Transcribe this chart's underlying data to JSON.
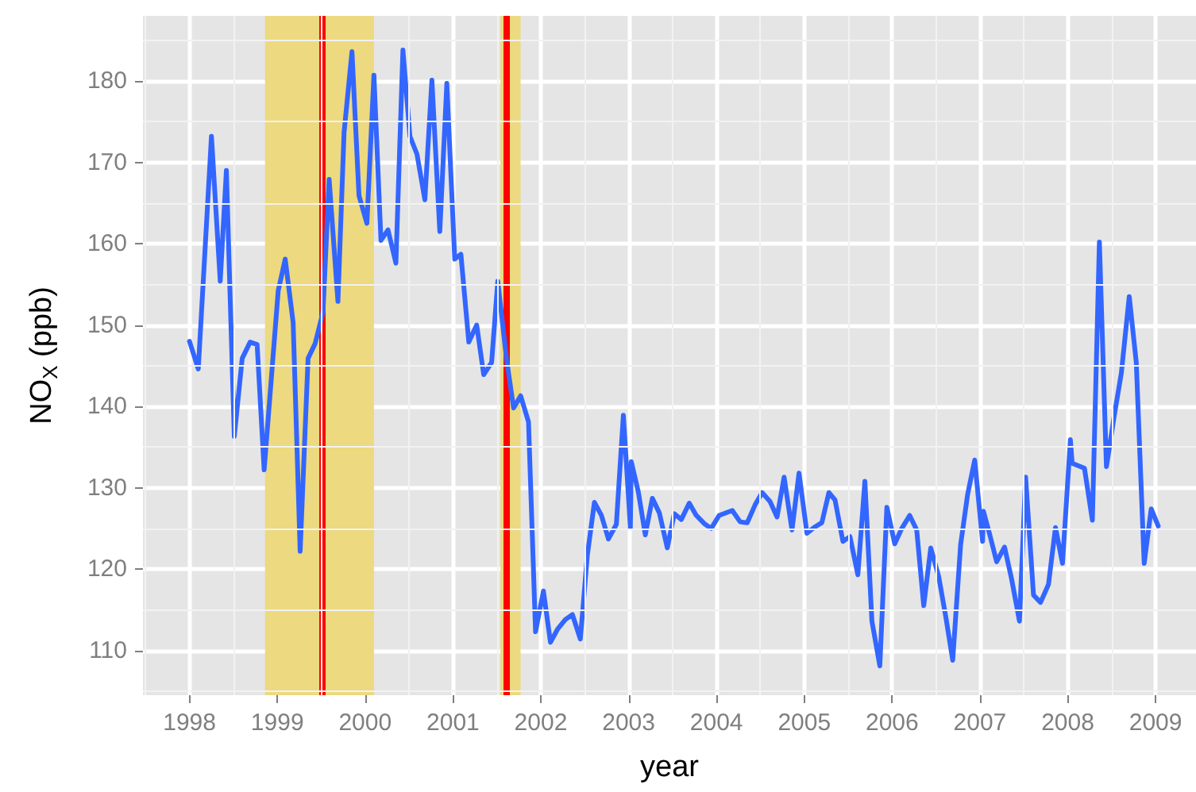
{
  "chart_data": {
    "type": "line",
    "xlabel": "year",
    "ylabel": "NO$_{X}$ (ppb)",
    "x": [
      1998.0,
      1998.1,
      1998.25,
      1998.35,
      1998.42,
      1998.51,
      1998.6,
      1998.69,
      1998.77,
      1998.85,
      1999.01,
      1999.09,
      1999.18,
      1999.26,
      1999.35,
      1999.43,
      1999.52,
      1999.59,
      1999.69,
      1999.76,
      1999.85,
      1999.93,
      2000.02,
      2000.1,
      2000.18,
      2000.26,
      2000.35,
      2000.43,
      2000.51,
      2000.59,
      2000.68,
      2000.76,
      2000.85,
      2000.93,
      2001.02,
      2001.09,
      2001.18,
      2001.27,
      2001.35,
      2001.44,
      2001.51,
      2001.61,
      2001.69,
      2001.77,
      2001.86,
      2001.94,
      2002.03,
      2002.11,
      2002.19,
      2002.28,
      2002.36,
      2002.45,
      2002.53,
      2002.61,
      2002.69,
      2002.77,
      2002.86,
      2002.94,
      2003.02,
      2003.03,
      2003.11,
      2003.19,
      2003.27,
      2003.35,
      2003.44,
      2003.52,
      2003.6,
      2003.69,
      2003.77,
      2003.86,
      2003.94,
      2004.03,
      2004.18,
      2004.27,
      2004.35,
      2004.44,
      2004.52,
      2004.61,
      2004.69,
      2004.77,
      2004.86,
      2004.94,
      2005.03,
      2005.11,
      2005.2,
      2005.28,
      2005.35,
      2005.44,
      2005.52,
      2005.61,
      2005.69,
      2005.77,
      2005.86,
      2005.94,
      2006.03,
      2006.11,
      2006.2,
      2006.28,
      2006.36,
      2006.44,
      2006.53,
      2006.61,
      2006.69,
      2006.78,
      2006.86,
      2006.94,
      2007.03,
      2007.04,
      2007.11,
      2007.19,
      2007.28,
      2007.36,
      2007.45,
      2007.52,
      2007.61,
      2007.69,
      2007.78,
      2007.86,
      2007.94,
      2008.03,
      2008.05,
      2008.19,
      2008.28,
      2008.36,
      2008.44,
      2008.53,
      2008.61,
      2008.7,
      2008.78,
      2008.87,
      2008.95,
      2009.03
    ],
    "series": [
      {
        "color": "#3366ff",
        "values": [
          148.0,
          144.6,
          173.2,
          155.4,
          169.0,
          136.3,
          145.9,
          147.9,
          147.6,
          132.2,
          154.2,
          158.1,
          150.3,
          122.2,
          145.9,
          147.7,
          151.6,
          167.9,
          152.9,
          173.7,
          183.6,
          165.9,
          162.5,
          180.7,
          160.4,
          161.7,
          157.6,
          183.8,
          173.2,
          171.0,
          165.4,
          180.1,
          161.5,
          179.7,
          158.1,
          158.7,
          147.9,
          150.0,
          143.9,
          145.4,
          155.4,
          145.8,
          139.8,
          141.3,
          138.1,
          112.3,
          117.3,
          111.0,
          112.6,
          113.8,
          114.4,
          111.4,
          121.7,
          128.2,
          126.6,
          123.7,
          125.5,
          138.9,
          125.1,
          133.2,
          129.5,
          124.2,
          128.7,
          126.9,
          122.6,
          126.8,
          126.1,
          128.1,
          126.6,
          125.6,
          125.0,
          126.6,
          127.2,
          125.8,
          125.7,
          127.9,
          129.4,
          128.3,
          126.4,
          131.3,
          124.8,
          131.8,
          124.4,
          125.1,
          125.7,
          129.4,
          128.5,
          123.4,
          124.0,
          119.3,
          130.8,
          113.6,
          108.1,
          127.6,
          123.1,
          125.0,
          126.6,
          124.8,
          115.5,
          122.6,
          119.1,
          114.2,
          108.8,
          123.0,
          129.2,
          133.4,
          123.4,
          127.1,
          124.3,
          120.9,
          122.7,
          118.8,
          113.6,
          131.3,
          116.8,
          115.9,
          118.1,
          125.1,
          120.7,
          135.9,
          133.0,
          132.4,
          126.0,
          160.2,
          132.6,
          138.9,
          144.1,
          153.5,
          145.4,
          120.7,
          127.4,
          125.3
        ]
      }
    ],
    "xlim": [
      1997.47,
      2009.46
    ],
    "xticks": [
      1998,
      1999,
      2000,
      2001,
      2002,
      2003,
      2004,
      2005,
      2006,
      2007,
      2008,
      2009
    ],
    "ylim": [
      104.5,
      188
    ],
    "yticks": [
      110,
      120,
      130,
      140,
      150,
      160,
      170,
      180
    ],
    "grid": true,
    "marker": "none",
    "line_style": "solid",
    "bands": [
      {
        "axis": "x",
        "from": 1998.86,
        "to": 2000.1,
        "color": "#edd97f"
      },
      {
        "axis": "x",
        "from": 2001.54,
        "to": 2001.77,
        "color": "#edd97f"
      }
    ],
    "ref_lines": [
      {
        "axis": "x",
        "value": 1999.51,
        "color": "#ff0000"
      },
      {
        "axis": "x",
        "value": 2001.61,
        "color": "#ff0000"
      }
    ]
  }
}
